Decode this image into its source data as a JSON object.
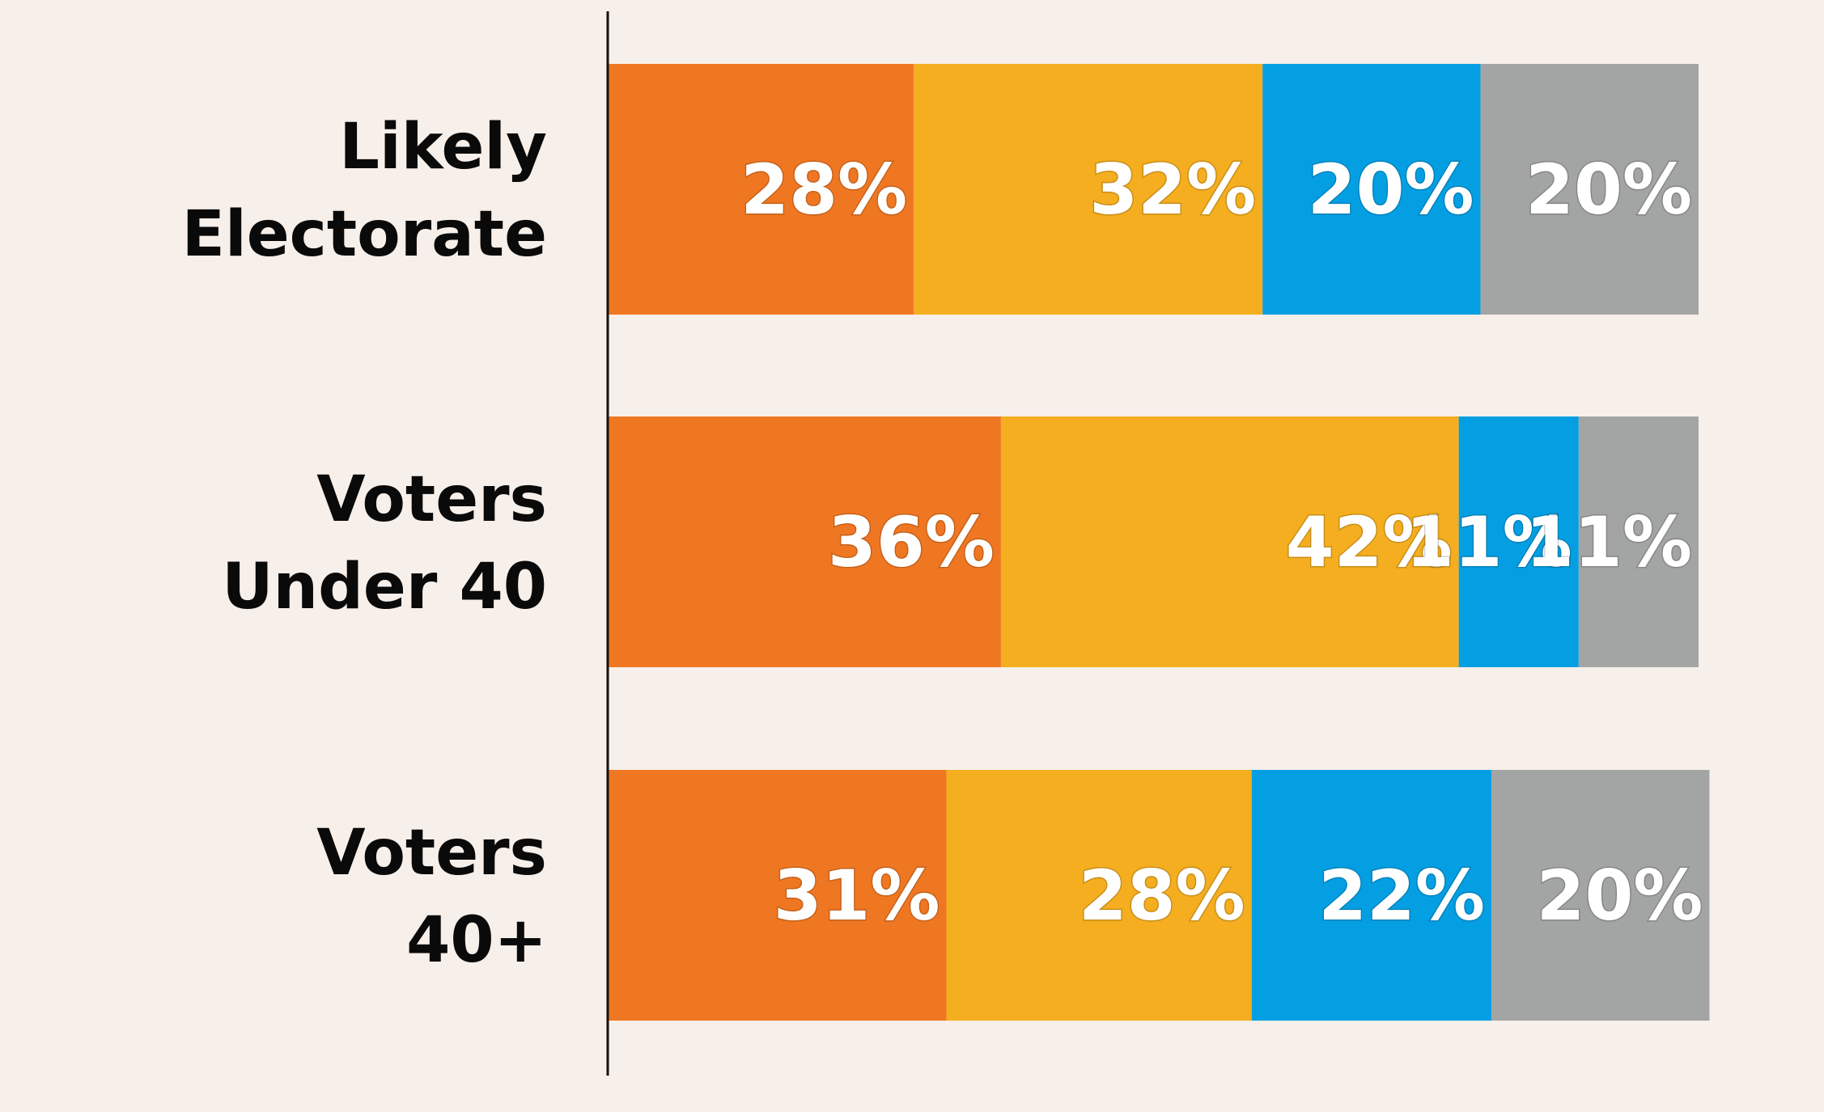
{
  "chart_data": {
    "type": "bar",
    "orientation": "horizontal",
    "stacked": true,
    "normalized": true,
    "categories": [
      [
        "Likely",
        "Electorate"
      ],
      [
        "Voters",
        "Under 40"
      ],
      [
        "Voters",
        "40+"
      ]
    ],
    "series": [
      {
        "values": [
          28,
          36,
          31
        ],
        "labels": [
          "28%",
          "36%",
          "31%"
        ],
        "color": "#f07722"
      },
      {
        "values": [
          32,
          42,
          28
        ],
        "labels": [
          "32%",
          "42%",
          "28%"
        ],
        "color": "#f4ae1f"
      },
      {
        "values": [
          20,
          11,
          22
        ],
        "labels": [
          "20%",
          "11%",
          "22%"
        ],
        "color": "#049fe3"
      },
      {
        "values": [
          20,
          11,
          20
        ],
        "labels": [
          "20%",
          "11%",
          "20%"
        ],
        "color": "#a3a5a4"
      }
    ],
    "xlim": [
      0,
      100
    ],
    "grid": false,
    "legend": "none",
    "colors": {
      "background": "#f7efe9",
      "axis": "#111111",
      "label_text": "#0a0a0a",
      "value_text": "#ffffff"
    }
  }
}
